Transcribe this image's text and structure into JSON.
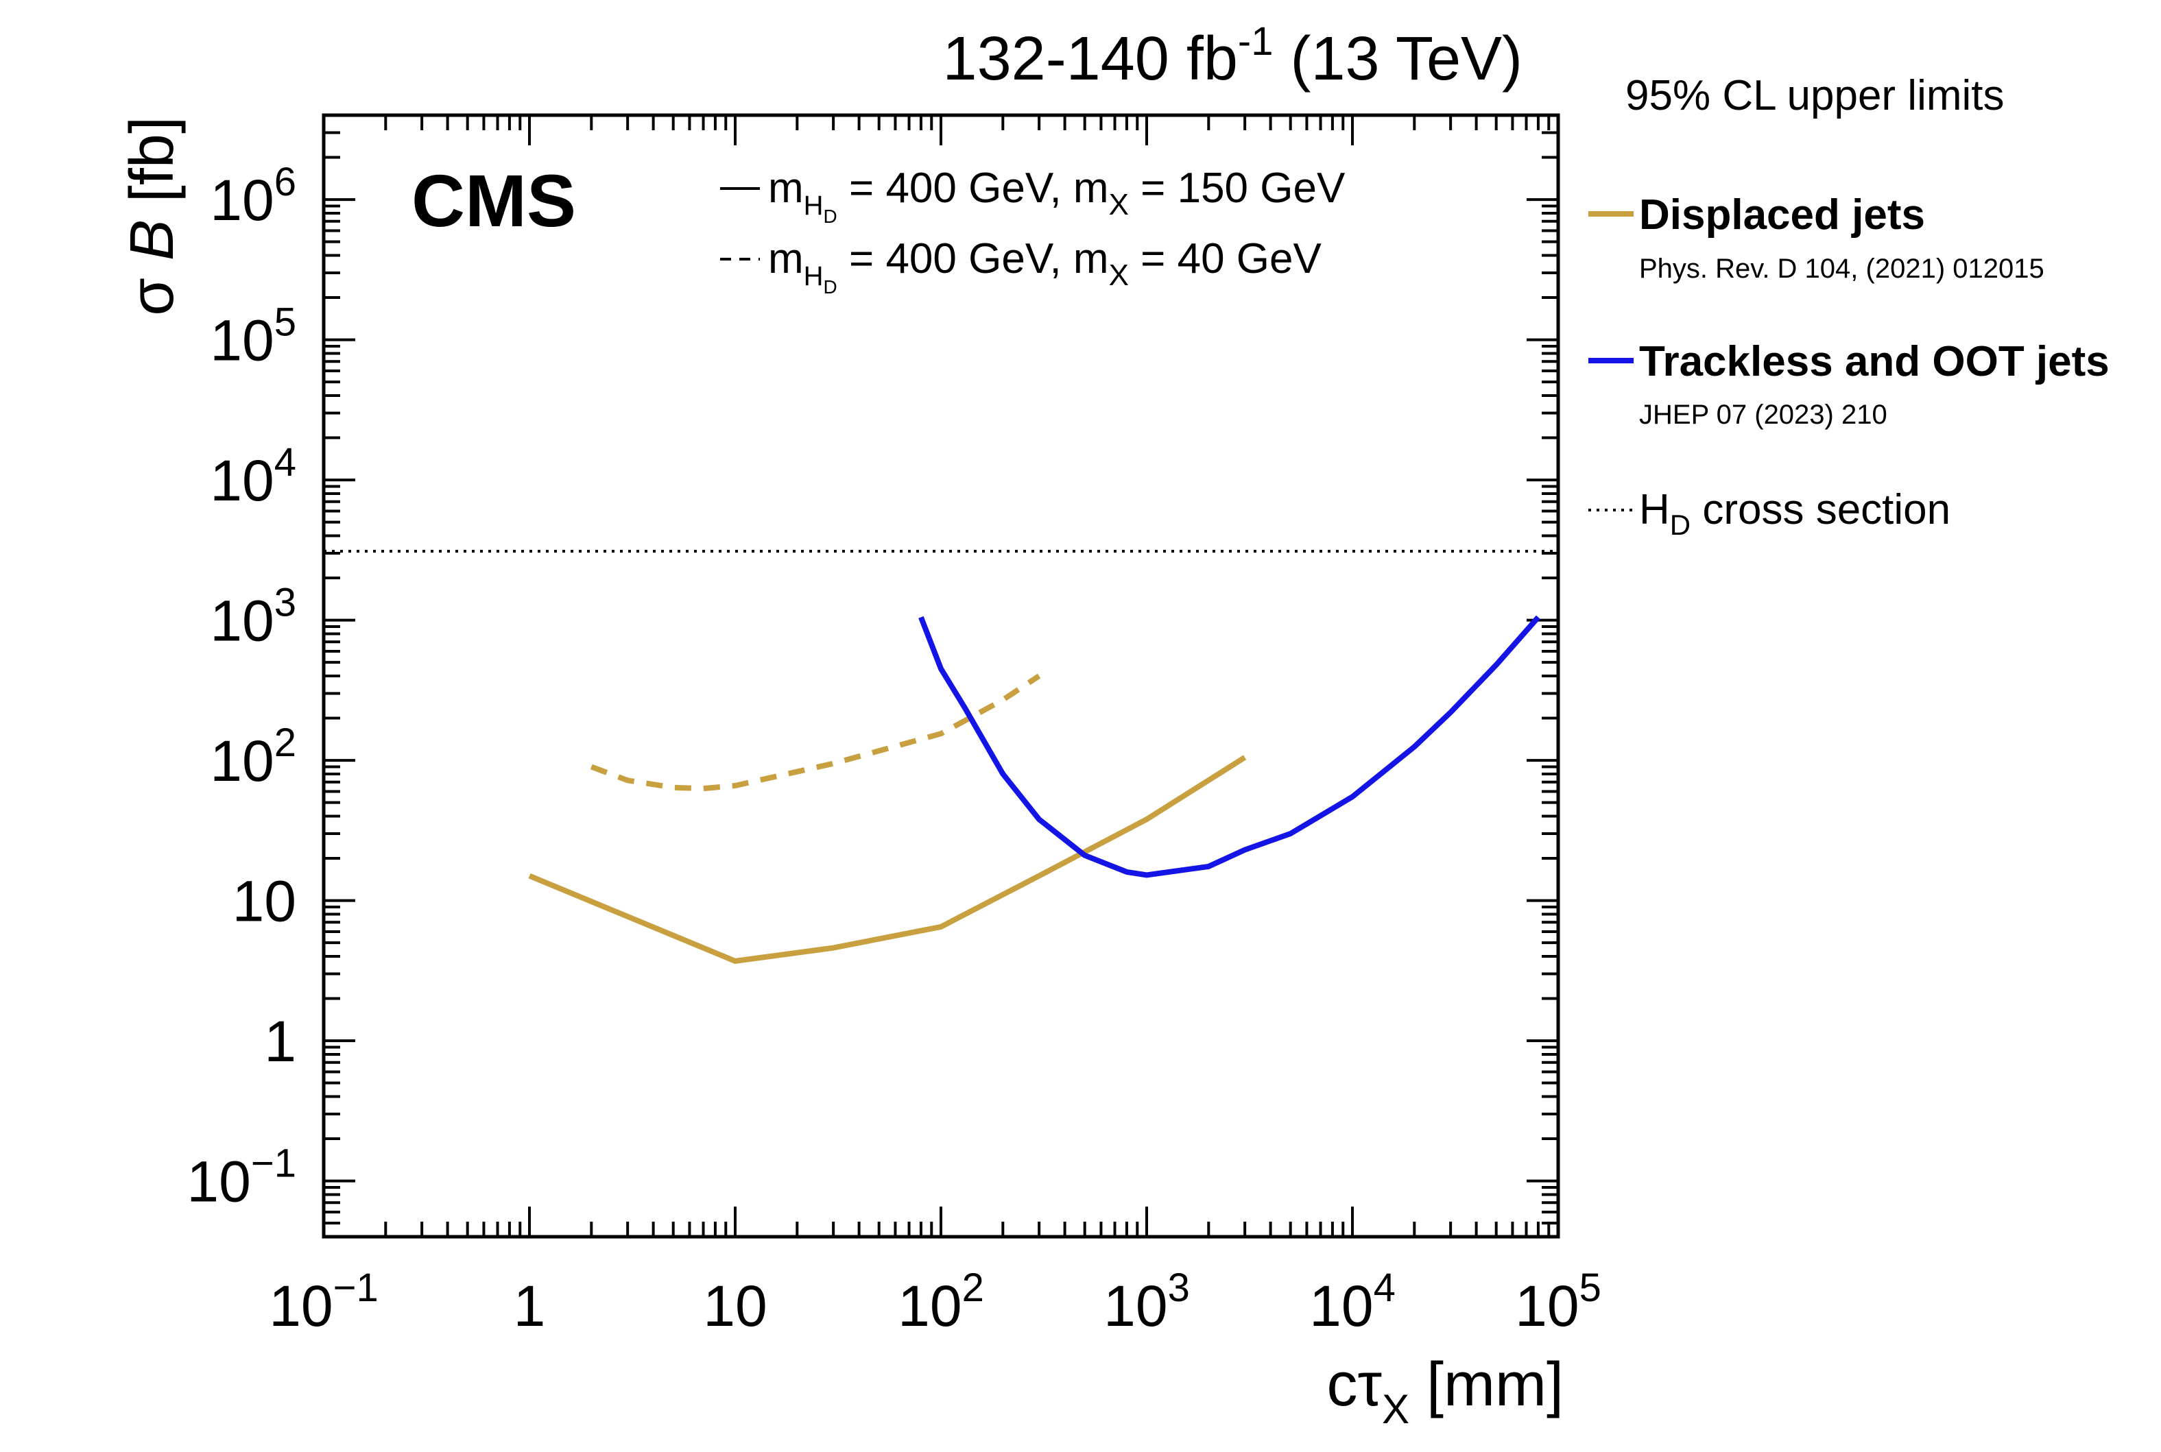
{
  "header": {
    "lumi": "132-140 fb",
    "lumi_exp": "-1",
    "energy": "(13 TeV)",
    "cms_label": "CMS"
  },
  "colors": {
    "displaced": "#C8A040",
    "trackless": "#1414E6",
    "frame": "#000000",
    "xsec": "#000000"
  },
  "legend": {
    "title": "95% CL upper limits",
    "displaced": {
      "label": "Displaced jets",
      "ref": "Phys. Rev. D 104, (2021) 012015"
    },
    "trackless": {
      "label": "Trackless and OOT jets",
      "ref": "JHEP 07 (2023) 210"
    },
    "xsec": {
      "label_main": "H",
      "label_sub": "D",
      "label_rest": " cross section"
    }
  },
  "mass_legend": {
    "solid": {
      "m": "m",
      "h": "H",
      "d": "D",
      "eq1": " = 400 GeV, m",
      "x": "X",
      "eq2": " = 150 GeV"
    },
    "dashed": {
      "m": "m",
      "h": "H",
      "d": "D",
      "eq1": " = 400 GeV, m",
      "x": "X",
      "eq2": " = 40 GeV"
    }
  },
  "chart_data": {
    "type": "line",
    "xscale": "log",
    "yscale": "log",
    "xlim": [
      0.1,
      100000
    ],
    "ylim": [
      0.04,
      4000000
    ],
    "xlabel": {
      "main": "cτ",
      "sub": "X",
      "rest": " [mm]"
    },
    "ylabel": {
      "sigma": "σ ",
      "b": "B",
      "rest": " [fb]"
    },
    "xticks": [
      {
        "value": 0.1,
        "base": "10",
        "exp": "−1"
      },
      {
        "value": 1,
        "base": "1",
        "exp": ""
      },
      {
        "value": 10,
        "base": "10",
        "exp": ""
      },
      {
        "value": 100,
        "base": "10",
        "exp": "2"
      },
      {
        "value": 1000,
        "base": "10",
        "exp": "3"
      },
      {
        "value": 10000,
        "base": "10",
        "exp": "4"
      },
      {
        "value": 100000,
        "base": "10",
        "exp": "5"
      }
    ],
    "yticks": [
      {
        "value": 0.1,
        "base": "10",
        "exp": "−1"
      },
      {
        "value": 1,
        "base": "1",
        "exp": ""
      },
      {
        "value": 10,
        "base": "10",
        "exp": ""
      },
      {
        "value": 100,
        "base": "10",
        "exp": "2"
      },
      {
        "value": 1000,
        "base": "10",
        "exp": "3"
      },
      {
        "value": 10000,
        "base": "10",
        "exp": "4"
      },
      {
        "value": 100000,
        "base": "10",
        "exp": "5"
      },
      {
        "value": 1000000,
        "base": "10",
        "exp": "6"
      }
    ],
    "hline": {
      "name": "HD cross section",
      "y": 3100,
      "style": "dotted"
    },
    "series": [
      {
        "name": "Displaced jets, mX = 150 GeV",
        "style": "solid",
        "color_key": "displaced",
        "x": [
          1,
          10,
          30,
          100,
          300,
          1000,
          3000
        ],
        "y": [
          15,
          3.7,
          4.6,
          6.5,
          15,
          38,
          105
        ]
      },
      {
        "name": "Displaced jets, mX = 40 GeV",
        "style": "dashed",
        "color_key": "displaced",
        "x": [
          2,
          3,
          5,
          7,
          10,
          30,
          100,
          200,
          300
        ],
        "y": [
          90,
          72,
          64,
          63,
          66,
          95,
          155,
          270,
          400
        ]
      },
      {
        "name": "Trackless and OOT jets, mX = 150 GeV",
        "style": "solid",
        "color_key": "trackless",
        "x": [
          80,
          100,
          130,
          200,
          300,
          500,
          800,
          1000,
          2000,
          3000,
          5000,
          10000,
          20000,
          30000,
          50000,
          80000
        ],
        "y": [
          1050,
          450,
          240,
          80,
          38,
          21,
          16,
          15.2,
          17.5,
          23,
          30,
          55,
          125,
          220,
          480,
          1050
        ]
      }
    ]
  }
}
